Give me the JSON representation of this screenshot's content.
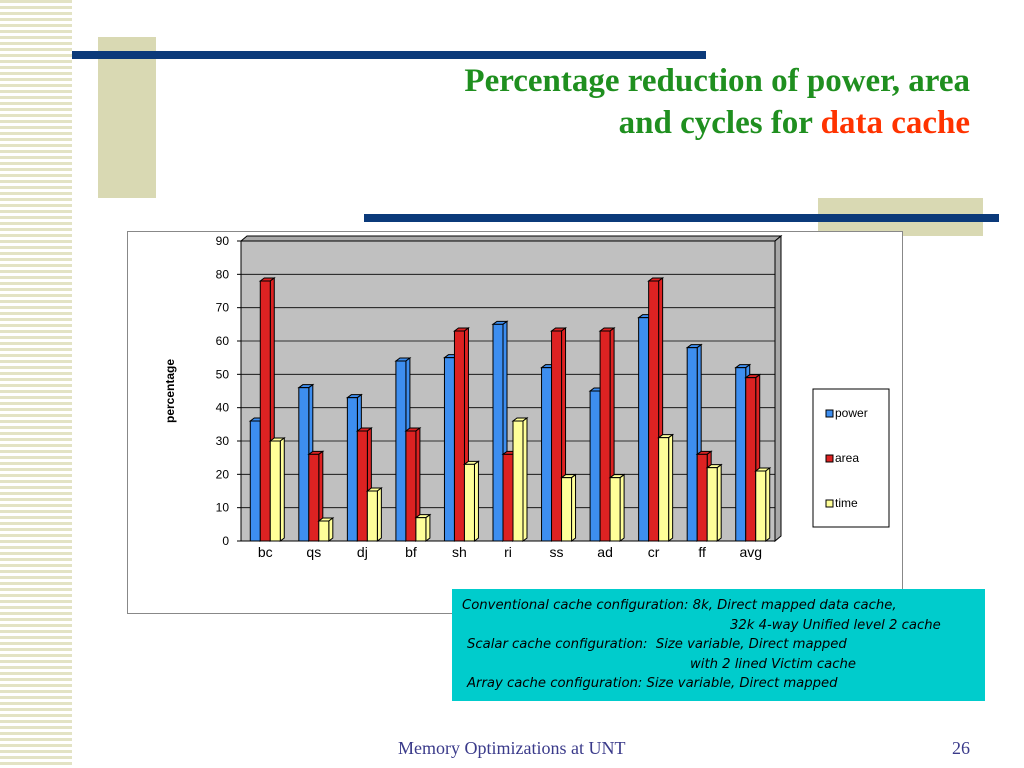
{
  "slide": {
    "title_line1": "Percentage reduction of power, area",
    "title_line2_prefix": "and cycles for ",
    "title_line2_accent": "data cache",
    "footer_left": "Memory Optimizations at UNT",
    "page_number": "26"
  },
  "info_box": {
    "lines": [
      "Conventional cache configuration: 8k, Direct mapped data cache,",
      "32k 4-way Unified level 2 cache",
      "Scalar cache configuration:  Size variable, Direct mapped",
      "with 2 lined Victim cache",
      "Array cache configuration: Size variable, Direct mapped"
    ]
  },
  "colors": {
    "title_green": "#1f8f1f",
    "title_accent": "#ff3300",
    "navy": "#0b3a7a",
    "olive": "#d9d9b3",
    "info_box": "#00cccc",
    "plot_bg": "#c0c0c0"
  },
  "chart_data": {
    "type": "bar",
    "categories": [
      "bc",
      "qs",
      "dj",
      "bf",
      "sh",
      "ri",
      "ss",
      "ad",
      "cr",
      "ff",
      "avg"
    ],
    "series": [
      {
        "name": "power",
        "color": "#3d8ef0",
        "values": [
          36,
          46,
          43,
          54,
          55,
          65,
          52,
          45,
          67,
          58,
          52
        ]
      },
      {
        "name": "area",
        "color": "#dd2222",
        "values": [
          78,
          26,
          33,
          33,
          63,
          26,
          63,
          63,
          78,
          26,
          49
        ]
      },
      {
        "name": "time",
        "color": "#ffff99",
        "values": [
          30,
          6,
          15,
          7,
          23,
          36,
          19,
          19,
          31,
          22,
          21
        ]
      }
    ],
    "ylabel": "percentage",
    "xlabel": "",
    "ylim": [
      0,
      90
    ],
    "yticks": [
      0,
      10,
      20,
      30,
      40,
      50,
      60,
      70,
      80,
      90
    ],
    "grid": true,
    "legend_position": "right"
  }
}
